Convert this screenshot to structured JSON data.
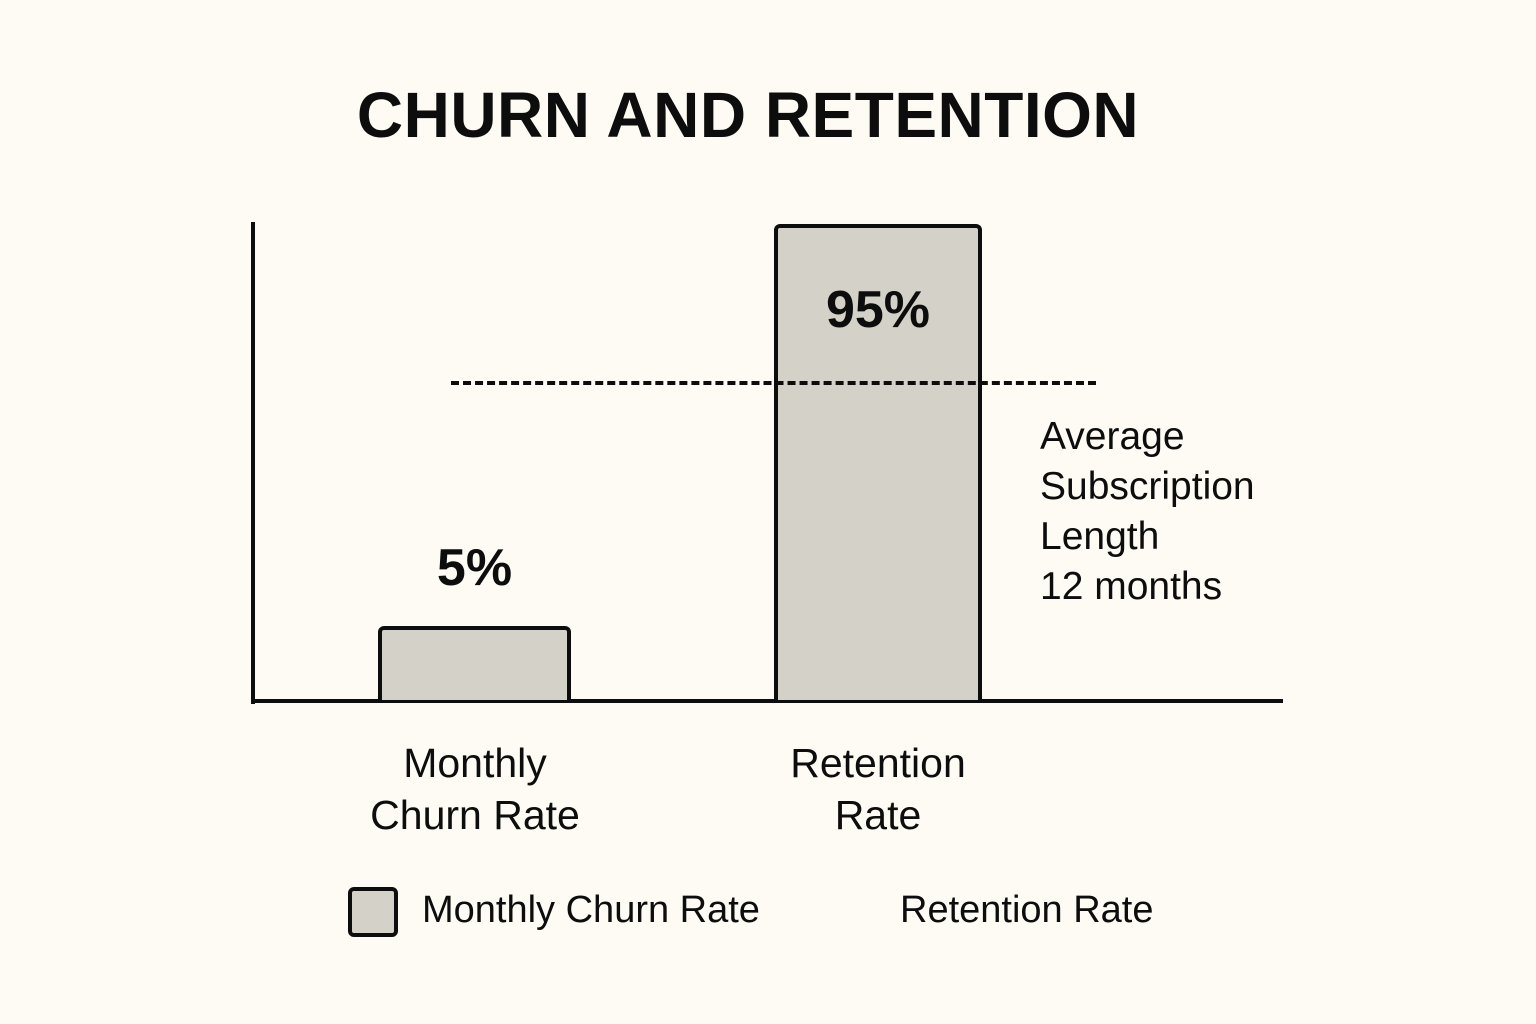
{
  "chart_data": {
    "type": "bar",
    "title": "CHURN AND RETENTION",
    "categories": [
      "Monthly Churn Rate",
      "Retention Rate"
    ],
    "category_lines": [
      [
        "Monthly",
        "Churn Rate"
      ],
      [
        "Retention",
        "Rate"
      ]
    ],
    "values": [
      5,
      95
    ],
    "value_labels": [
      "5%",
      "95%"
    ],
    "unit": "%",
    "xlabel": "",
    "ylabel": "",
    "ylim": [
      0,
      100
    ],
    "grid": false,
    "reference_line": {
      "style": "dashed",
      "label_lines": [
        "Average",
        "Subscription",
        "Length",
        "12 months"
      ],
      "label": "Average Subscription Length 12 months",
      "value": "12 months"
    },
    "legend": {
      "position": "bottom",
      "entries": [
        "Monthly Churn Rate",
        "Retention Rate"
      ]
    },
    "colors": {
      "bar_fill": "#d4d1c8",
      "bar_stroke": "#0d0d0d",
      "background": "#fdfbf4"
    }
  }
}
